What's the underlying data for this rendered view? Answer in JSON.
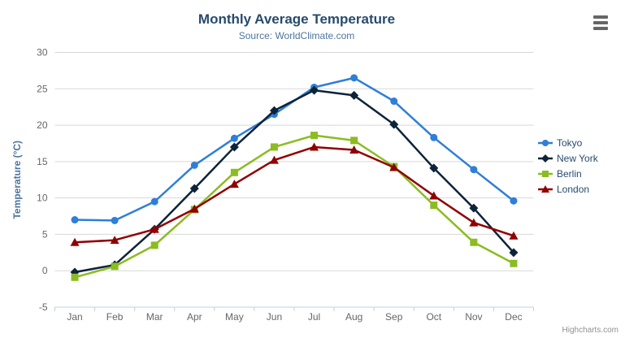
{
  "header": {
    "title": "Monthly Average Temperature",
    "subtitle": "Source: WorldClimate.com"
  },
  "context_menu": {
    "icon": "hamburger-icon"
  },
  "credits_label": "Highcharts.com",
  "style": {
    "title_color": "#274b6d",
    "subtitle_color": "#4d759e",
    "axis_label_color": "#666666",
    "axis_title_color": "#4d759e",
    "gridline_color": "#d8d8d8",
    "axis_line_color": "#c0d0e0",
    "legend_text_color": "#274b6d"
  },
  "chart_data": {
    "type": "line",
    "title": "Monthly Average Temperature",
    "subtitle": "Source: WorldClimate.com",
    "xlabel": "",
    "ylabel": "Temperature (°C)",
    "ylim": [
      -5,
      30
    ],
    "ytick_interval": 5,
    "grid": true,
    "legend_position": "right",
    "categories": [
      "Jan",
      "Feb",
      "Mar",
      "Apr",
      "May",
      "Jun",
      "Jul",
      "Aug",
      "Sep",
      "Oct",
      "Nov",
      "Dec"
    ],
    "series": [
      {
        "name": "Tokyo",
        "color": "#2f7ed8",
        "marker": "circle",
        "values": [
          7.0,
          6.9,
          9.5,
          14.5,
          18.2,
          21.5,
          25.2,
          26.5,
          23.3,
          18.3,
          13.9,
          9.6
        ]
      },
      {
        "name": "New York",
        "color": "#0d233a",
        "marker": "diamond",
        "values": [
          -0.2,
          0.8,
          5.7,
          11.3,
          17.0,
          22.0,
          24.8,
          24.1,
          20.1,
          14.1,
          8.6,
          2.5
        ]
      },
      {
        "name": "Berlin",
        "color": "#8bbc21",
        "marker": "square",
        "values": [
          -0.9,
          0.6,
          3.5,
          8.4,
          13.5,
          17.0,
          18.6,
          17.9,
          14.3,
          9.0,
          3.9,
          1.0
        ]
      },
      {
        "name": "London",
        "color": "#910000",
        "marker": "triangle",
        "values": [
          3.9,
          4.2,
          5.7,
          8.5,
          11.9,
          15.2,
          17.0,
          16.6,
          14.2,
          10.3,
          6.6,
          4.8
        ]
      }
    ]
  }
}
